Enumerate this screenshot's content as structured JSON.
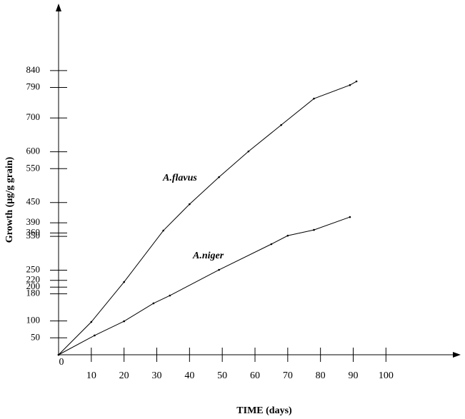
{
  "chart_data": {
    "type": "line",
    "xlabel": "TIME     (days)",
    "ylabel": "Growth (µg/g grain)",
    "xlim": [
      0,
      120
    ],
    "xticks": [
      0,
      10,
      20,
      30,
      40,
      50,
      60,
      70,
      80,
      90,
      100
    ],
    "ylim": [
      0,
      1000
    ],
    "yticks": [
      50,
      100,
      180,
      200,
      220,
      250,
      350,
      360,
      390,
      450,
      550,
      600,
      700,
      790,
      840
    ],
    "annotations": [
      "A.flavus",
      "A.niger"
    ],
    "series": [
      {
        "name": "A.flavus",
        "color": "#000000",
        "x": [
          0,
          10,
          20,
          32,
          40,
          49,
          58,
          68,
          78,
          89,
          91
        ],
        "values": [
          0,
          97,
          215,
          367,
          445,
          525,
          601,
          679,
          757,
          797,
          808
        ]
      },
      {
        "name": "A.niger",
        "color": "#000000",
        "x": [
          0,
          11,
          20,
          29,
          34,
          49,
          65,
          70,
          78,
          89
        ],
        "values": [
          0,
          57,
          99,
          152,
          175,
          251,
          327,
          352,
          369,
          407
        ]
      }
    ]
  }
}
